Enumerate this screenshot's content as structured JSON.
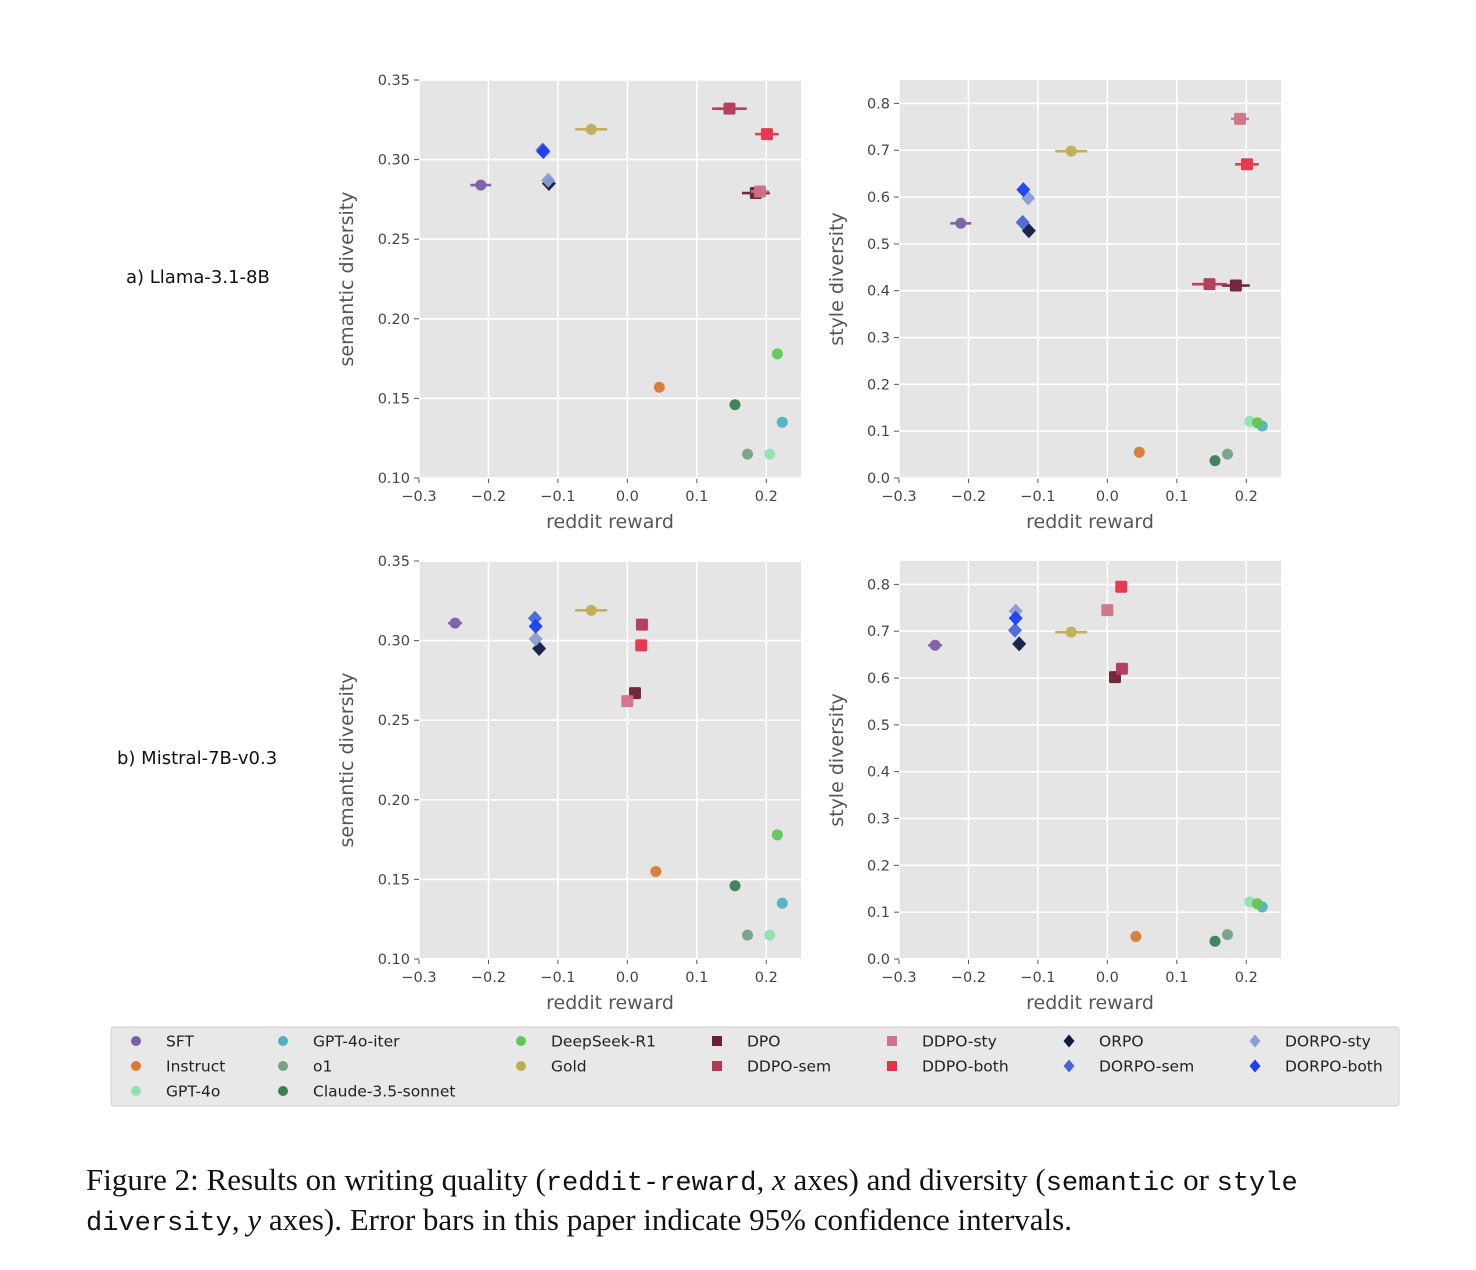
{
  "figure": {
    "caption": {
      "prefix": "Figure 2:  Results on writing quality (",
      "code1": "reddit-reward",
      "part2": ", ",
      "var_x": "x",
      "part3": " axes) and diversity (",
      "code2": "semantic",
      "part4": " or ",
      "code3": "style diversity",
      "part5": ", ",
      "var_y": "y",
      "part6": " axes). Error bars in this paper indicate 95% confidence intervals."
    },
    "row_labels": [
      "a) Llama-3.1-8B",
      "b) Mistral-7B-v0.3"
    ]
  },
  "chart_data": {
    "type": "scatter",
    "grid": true,
    "legend_placement": "bottom",
    "legend": [
      {
        "name": "SFT",
        "color": "#7b5ea7",
        "marker": "circle"
      },
      {
        "name": "Instruct",
        "color": "#d87a35",
        "marker": "circle"
      },
      {
        "name": "GPT-4o",
        "color": "#90e0b0",
        "marker": "circle"
      },
      {
        "name": "GPT-4o-iter",
        "color": "#4eb3bf",
        "marker": "circle"
      },
      {
        "name": "o1",
        "color": "#77a088",
        "marker": "circle"
      },
      {
        "name": "Claude-3.5-sonnet",
        "color": "#3a8050",
        "marker": "circle"
      },
      {
        "name": "DeepSeek-R1",
        "color": "#62c656",
        "marker": "circle"
      },
      {
        "name": "Gold",
        "color": "#bfae50",
        "marker": "circle"
      },
      {
        "name": "DPO",
        "color": "#6b2035",
        "marker": "square"
      },
      {
        "name": "DDPO-sem",
        "color": "#b23a58",
        "marker": "square"
      },
      {
        "name": "DDPO-sty",
        "color": "#d07288",
        "marker": "square"
      },
      {
        "name": "DDPO-both",
        "color": "#e8304a",
        "marker": "square"
      },
      {
        "name": "ORPO",
        "color": "#101a45",
        "marker": "diamond"
      },
      {
        "name": "DORPO-sem",
        "color": "#4666d6",
        "marker": "diamond"
      },
      {
        "name": "DORPO-sty",
        "color": "#8a9cd2",
        "marker": "diamond"
      },
      {
        "name": "DORPO-both",
        "color": "#1a40f0",
        "marker": "diamond"
      }
    ],
    "panels": [
      {
        "row": 0,
        "col": 0,
        "xlabel": "reddit reward",
        "ylabel": "semantic diversity",
        "xlim": [
          -0.3,
          0.25
        ],
        "ylim": [
          0.1,
          0.35
        ],
        "xticks": [
          "-0.3",
          "-0.2",
          "-0.1",
          "0.0",
          "0.1",
          "0.2"
        ],
        "xtick_values": [
          -0.3,
          -0.2,
          -0.1,
          0.0,
          0.1,
          0.2
        ],
        "yticks": [
          "0.10",
          "0.15",
          "0.20",
          "0.25",
          "0.30",
          "0.35"
        ],
        "ytick_values": [
          0.1,
          0.15,
          0.2,
          0.25,
          0.3,
          0.35
        ],
        "points": [
          {
            "name": "SFT",
            "x": -0.211,
            "y": 0.284,
            "xerr": 0.015
          },
          {
            "name": "Instruct",
            "x": 0.046,
            "y": 0.157,
            "xerr": 0
          },
          {
            "name": "GPT-4o",
            "x": 0.205,
            "y": 0.115,
            "xerr": 0
          },
          {
            "name": "GPT-4o-iter",
            "x": 0.223,
            "y": 0.135,
            "xerr": 0
          },
          {
            "name": "o1",
            "x": 0.173,
            "y": 0.115,
            "xerr": 0
          },
          {
            "name": "Claude-3.5-sonnet",
            "x": 0.155,
            "y": 0.146,
            "xerr": 0
          },
          {
            "name": "DeepSeek-R1",
            "x": 0.216,
            "y": 0.178,
            "xerr": 0
          },
          {
            "name": "Gold",
            "x": -0.052,
            "y": 0.319,
            "xerr": 0.023
          },
          {
            "name": "DPO",
            "x": 0.185,
            "y": 0.279,
            "xerr": 0.02
          },
          {
            "name": "DDPO-sem",
            "x": 0.147,
            "y": 0.332,
            "xerr": 0.025
          },
          {
            "name": "DDPO-sty",
            "x": 0.191,
            "y": 0.28,
            "xerr": 0.013
          },
          {
            "name": "DDPO-both",
            "x": 0.201,
            "y": 0.316,
            "xerr": 0.017
          },
          {
            "name": "ORPO",
            "x": -0.113,
            "y": 0.285,
            "xerr": 0
          },
          {
            "name": "DORPO-sem",
            "x": -0.122,
            "y": 0.306,
            "xerr": 0
          },
          {
            "name": "DORPO-sty",
            "x": -0.114,
            "y": 0.287,
            "xerr": 0
          },
          {
            "name": "DORPO-both",
            "x": -0.121,
            "y": 0.305,
            "xerr": 0
          }
        ]
      },
      {
        "row": 0,
        "col": 1,
        "xlabel": "reddit reward",
        "ylabel": "style diversity",
        "xlim": [
          -0.3,
          0.25
        ],
        "ylim": [
          0.0,
          0.85
        ],
        "xticks": [
          "-0.3",
          "-0.2",
          "-0.1",
          "0.0",
          "0.1",
          "0.2"
        ],
        "xtick_values": [
          -0.3,
          -0.2,
          -0.1,
          0.0,
          0.1,
          0.2
        ],
        "yticks": [
          "0.0",
          "0.1",
          "0.2",
          "0.3",
          "0.4",
          "0.5",
          "0.6",
          "0.7",
          "0.8"
        ],
        "ytick_values": [
          0.0,
          0.1,
          0.2,
          0.3,
          0.4,
          0.5,
          0.6,
          0.7,
          0.8
        ],
        "points": [
          {
            "name": "SFT",
            "x": -0.211,
            "y": 0.544,
            "xerr": 0.015
          },
          {
            "name": "Instruct",
            "x": 0.046,
            "y": 0.055,
            "xerr": 0
          },
          {
            "name": "GPT-4o",
            "x": 0.205,
            "y": 0.121,
            "xerr": 0
          },
          {
            "name": "GPT-4o-iter",
            "x": 0.223,
            "y": 0.111,
            "xerr": 0
          },
          {
            "name": "o1",
            "x": 0.173,
            "y": 0.051,
            "xerr": 0
          },
          {
            "name": "Claude-3.5-sonnet",
            "x": 0.155,
            "y": 0.037,
            "xerr": 0
          },
          {
            "name": "DeepSeek-R1",
            "x": 0.216,
            "y": 0.118,
            "xerr": 0
          },
          {
            "name": "Gold",
            "x": -0.052,
            "y": 0.698,
            "xerr": 0.023
          },
          {
            "name": "DPO",
            "x": 0.185,
            "y": 0.411,
            "xerr": 0.02
          },
          {
            "name": "DDPO-sem",
            "x": 0.147,
            "y": 0.414,
            "xerr": 0.025
          },
          {
            "name": "DDPO-sty",
            "x": 0.191,
            "y": 0.767,
            "xerr": 0.013
          },
          {
            "name": "DDPO-both",
            "x": 0.201,
            "y": 0.67,
            "xerr": 0.017
          },
          {
            "name": "ORPO",
            "x": -0.113,
            "y": 0.528,
            "xerr": 0
          },
          {
            "name": "DORPO-sem",
            "x": -0.122,
            "y": 0.546,
            "xerr": 0
          },
          {
            "name": "DORPO-sty",
            "x": -0.114,
            "y": 0.598,
            "xerr": 0
          },
          {
            "name": "DORPO-both",
            "x": -0.121,
            "y": 0.616,
            "xerr": 0
          }
        ]
      },
      {
        "row": 1,
        "col": 0,
        "xlabel": "reddit reward",
        "ylabel": "semantic diversity",
        "xlim": [
          -0.3,
          0.25
        ],
        "ylim": [
          0.1,
          0.35
        ],
        "xticks": [
          "-0.3",
          "-0.2",
          "-0.1",
          "0.0",
          "0.1",
          "0.2"
        ],
        "xtick_values": [
          -0.3,
          -0.2,
          -0.1,
          0.0,
          0.1,
          0.2
        ],
        "yticks": [
          "0.10",
          "0.15",
          "0.20",
          "0.25",
          "0.30",
          "0.35"
        ],
        "ytick_values": [
          0.1,
          0.15,
          0.2,
          0.25,
          0.3,
          0.35
        ],
        "points": [
          {
            "name": "SFT",
            "x": -0.248,
            "y": 0.311,
            "xerr": 0.01
          },
          {
            "name": "Instruct",
            "x": 0.041,
            "y": 0.155,
            "xerr": 0
          },
          {
            "name": "GPT-4o",
            "x": 0.205,
            "y": 0.115,
            "xerr": 0
          },
          {
            "name": "GPT-4o-iter",
            "x": 0.223,
            "y": 0.135,
            "xerr": 0
          },
          {
            "name": "o1",
            "x": 0.173,
            "y": 0.115,
            "xerr": 0
          },
          {
            "name": "Claude-3.5-sonnet",
            "x": 0.155,
            "y": 0.146,
            "xerr": 0
          },
          {
            "name": "DeepSeek-R1",
            "x": 0.216,
            "y": 0.178,
            "xerr": 0
          },
          {
            "name": "Gold",
            "x": -0.052,
            "y": 0.319,
            "xerr": 0.023
          },
          {
            "name": "DPO",
            "x": 0.011,
            "y": 0.267,
            "xerr": 0.006
          },
          {
            "name": "DDPO-sem",
            "x": 0.021,
            "y": 0.31,
            "xerr": 0.006
          },
          {
            "name": "DDPO-sty",
            "x": 0.0,
            "y": 0.262,
            "xerr": 0.006
          },
          {
            "name": "DDPO-both",
            "x": 0.02,
            "y": 0.297,
            "xerr": 0.006
          },
          {
            "name": "ORPO",
            "x": -0.127,
            "y": 0.295,
            "xerr": 0
          },
          {
            "name": "DORPO-sem",
            "x": -0.133,
            "y": 0.314,
            "xerr": 0
          },
          {
            "name": "DORPO-sty",
            "x": -0.132,
            "y": 0.301,
            "xerr": 0
          },
          {
            "name": "DORPO-both",
            "x": -0.132,
            "y": 0.309,
            "xerr": 0
          }
        ]
      },
      {
        "row": 1,
        "col": 1,
        "xlabel": "reddit reward",
        "ylabel": "style diversity",
        "xlim": [
          -0.3,
          0.25
        ],
        "ylim": [
          0.0,
          0.85
        ],
        "xticks": [
          "-0.3",
          "-0.2",
          "-0.1",
          "0.0",
          "0.1",
          "0.2"
        ],
        "xtick_values": [
          -0.3,
          -0.2,
          -0.1,
          0.0,
          0.1,
          0.2
        ],
        "yticks": [
          "0.0",
          "0.1",
          "0.2",
          "0.3",
          "0.4",
          "0.5",
          "0.6",
          "0.7",
          "0.8"
        ],
        "ytick_values": [
          0.0,
          0.1,
          0.2,
          0.3,
          0.4,
          0.5,
          0.6,
          0.7,
          0.8
        ],
        "points": [
          {
            "name": "SFT",
            "x": -0.248,
            "y": 0.67,
            "xerr": 0.01
          },
          {
            "name": "Instruct",
            "x": 0.041,
            "y": 0.048,
            "xerr": 0
          },
          {
            "name": "GPT-4o",
            "x": 0.205,
            "y": 0.122,
            "xerr": 0
          },
          {
            "name": "GPT-4o-iter",
            "x": 0.223,
            "y": 0.111,
            "xerr": 0
          },
          {
            "name": "o1",
            "x": 0.173,
            "y": 0.052,
            "xerr": 0
          },
          {
            "name": "Claude-3.5-sonnet",
            "x": 0.155,
            "y": 0.038,
            "xerr": 0
          },
          {
            "name": "DeepSeek-R1",
            "x": 0.216,
            "y": 0.118,
            "xerr": 0
          },
          {
            "name": "Gold",
            "x": -0.052,
            "y": 0.698,
            "xerr": 0.023
          },
          {
            "name": "DPO",
            "x": 0.011,
            "y": 0.602,
            "xerr": 0.006
          },
          {
            "name": "DDPO-sem",
            "x": 0.021,
            "y": 0.62,
            "xerr": 0.006
          },
          {
            "name": "DDPO-sty",
            "x": 0.0,
            "y": 0.745,
            "xerr": 0.006
          },
          {
            "name": "DDPO-both",
            "x": 0.02,
            "y": 0.795,
            "xerr": 0.006
          },
          {
            "name": "ORPO",
            "x": -0.127,
            "y": 0.673,
            "xerr": 0
          },
          {
            "name": "DORPO-sem",
            "x": -0.133,
            "y": 0.702,
            "xerr": 0
          },
          {
            "name": "DORPO-sty",
            "x": -0.132,
            "y": 0.743,
            "xerr": 0
          },
          {
            "name": "DORPO-both",
            "x": -0.132,
            "y": 0.728,
            "xerr": 0
          }
        ]
      }
    ]
  }
}
